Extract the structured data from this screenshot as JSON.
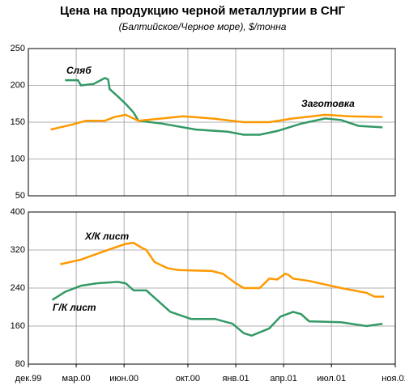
{
  "title": "Цена на продукцию черной металлургии в СНГ",
  "subtitle": "(Балтийское/Черное море), $/тонна",
  "chart_data": [
    {
      "type": "line",
      "xlim": [
        0,
        23
      ],
      "ylim": [
        50,
        250
      ],
      "yticks": [
        50,
        100,
        150,
        200,
        250
      ],
      "grid": true,
      "series": [
        {
          "name": "Сляб",
          "color": "#339966",
          "x": [
            2.3,
            3.1,
            3.3,
            4.1,
            4.8,
            5.0,
            5.1,
            5.6,
            6.1,
            6.6,
            6.9,
            8.4,
            10.5,
            12.5,
            13.5,
            14.5,
            15.6,
            17.1,
            18.6,
            19.6,
            20.7,
            22.2
          ],
          "values": [
            207,
            207,
            200,
            202,
            210,
            208,
            195,
            185,
            175,
            163,
            152,
            148,
            140,
            137,
            133,
            133,
            138,
            148,
            155,
            153,
            145,
            143
          ]
        },
        {
          "name": "Заготовка",
          "color": "#ff9900",
          "x": [
            1.4,
            2.8,
            3.6,
            4.8,
            5.4,
            6.1,
            6.9,
            8.4,
            9.7,
            11.5,
            13.5,
            15.1,
            16.6,
            18.6,
            20.2,
            22.2
          ],
          "values": [
            140,
            147,
            152,
            152,
            157,
            160,
            152,
            155,
            158,
            155,
            150,
            150,
            155,
            160,
            158,
            157
          ]
        }
      ]
    },
    {
      "type": "line",
      "xlim": [
        0,
        23
      ],
      "ylim": [
        80,
        400
      ],
      "yticks": [
        80,
        160,
        240,
        320,
        400
      ],
      "grid": true,
      "xticks": [
        {
          "value": 0,
          "label": "дек.99"
        },
        {
          "value": 3,
          "label": "мар.00"
        },
        {
          "value": 6,
          "label": "июн.00"
        },
        {
          "value": 10,
          "label": "окт.00"
        },
        {
          "value": 13,
          "label": "янв.01"
        },
        {
          "value": 16,
          "label": "апр.01"
        },
        {
          "value": 19,
          "label": "июл.01"
        },
        {
          "value": 23,
          "label": "ноя.01"
        }
      ],
      "series": [
        {
          "name": "Х/К лист",
          "color": "#ff9900",
          "x": [
            2.0,
            3.3,
            4.8,
            6.1,
            6.6,
            7.1,
            7.4,
            7.9,
            8.7,
            9.4,
            11.5,
            12.2,
            13.0,
            13.5,
            14.5,
            15.1,
            15.6,
            16.1,
            16.3,
            16.6,
            17.6,
            19.6,
            21.2,
            21.7,
            22.3
          ],
          "values": [
            290,
            300,
            318,
            333,
            335,
            325,
            320,
            295,
            282,
            278,
            276,
            270,
            250,
            240,
            240,
            260,
            258,
            270,
            268,
            260,
            255,
            240,
            230,
            222,
            222
          ]
        },
        {
          "name": "Г/К лист",
          "color": "#339966",
          "x": [
            1.5,
            2.3,
            3.3,
            4.3,
            5.6,
            6.1,
            6.6,
            7.4,
            7.9,
            8.9,
            10.2,
            11.7,
            12.8,
            13.5,
            14.0,
            15.1,
            15.8,
            16.6,
            17.1,
            17.6,
            19.6,
            21.2,
            22.2
          ],
          "values": [
            215,
            232,
            245,
            250,
            253,
            250,
            235,
            235,
            220,
            190,
            175,
            175,
            165,
            145,
            140,
            155,
            180,
            190,
            185,
            170,
            168,
            160,
            165
          ]
        }
      ]
    }
  ]
}
